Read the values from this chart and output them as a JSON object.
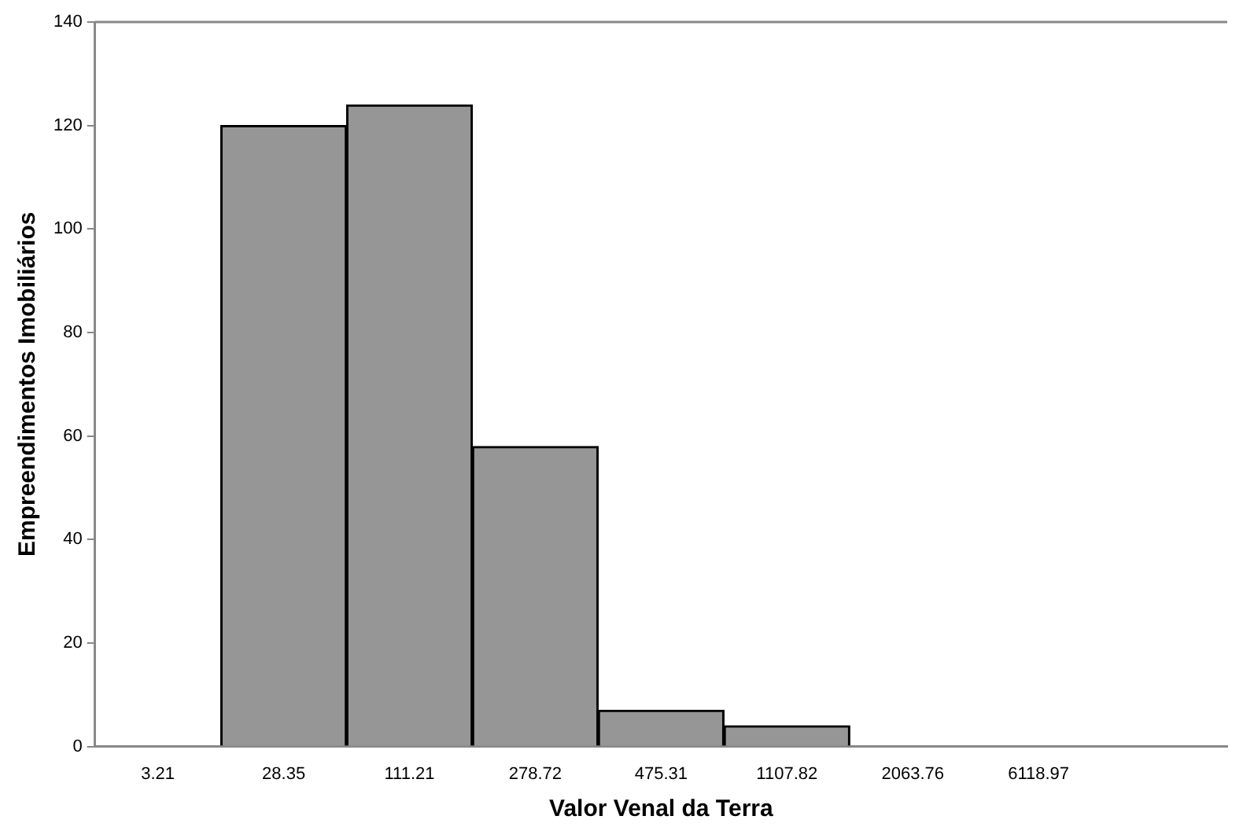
{
  "chart_data": {
    "type": "bar",
    "xlabel": "Valor Venal da Terra",
    "ylabel": "Empreendimentos Imobiliários",
    "categories": [
      "3.21",
      "28.35",
      "111.21",
      "278.72",
      "475.31",
      "1107.82",
      "2063.76",
      "6118.97",
      null
    ],
    "values": [
      0,
      120,
      124,
      58,
      7,
      4,
      0,
      0,
      0
    ],
    "color": "#969696",
    "ylim": [
      0,
      140
    ],
    "yticks": [
      0,
      20,
      40,
      60,
      80,
      100,
      120,
      140
    ],
    "grid": false,
    "legend": false
  }
}
